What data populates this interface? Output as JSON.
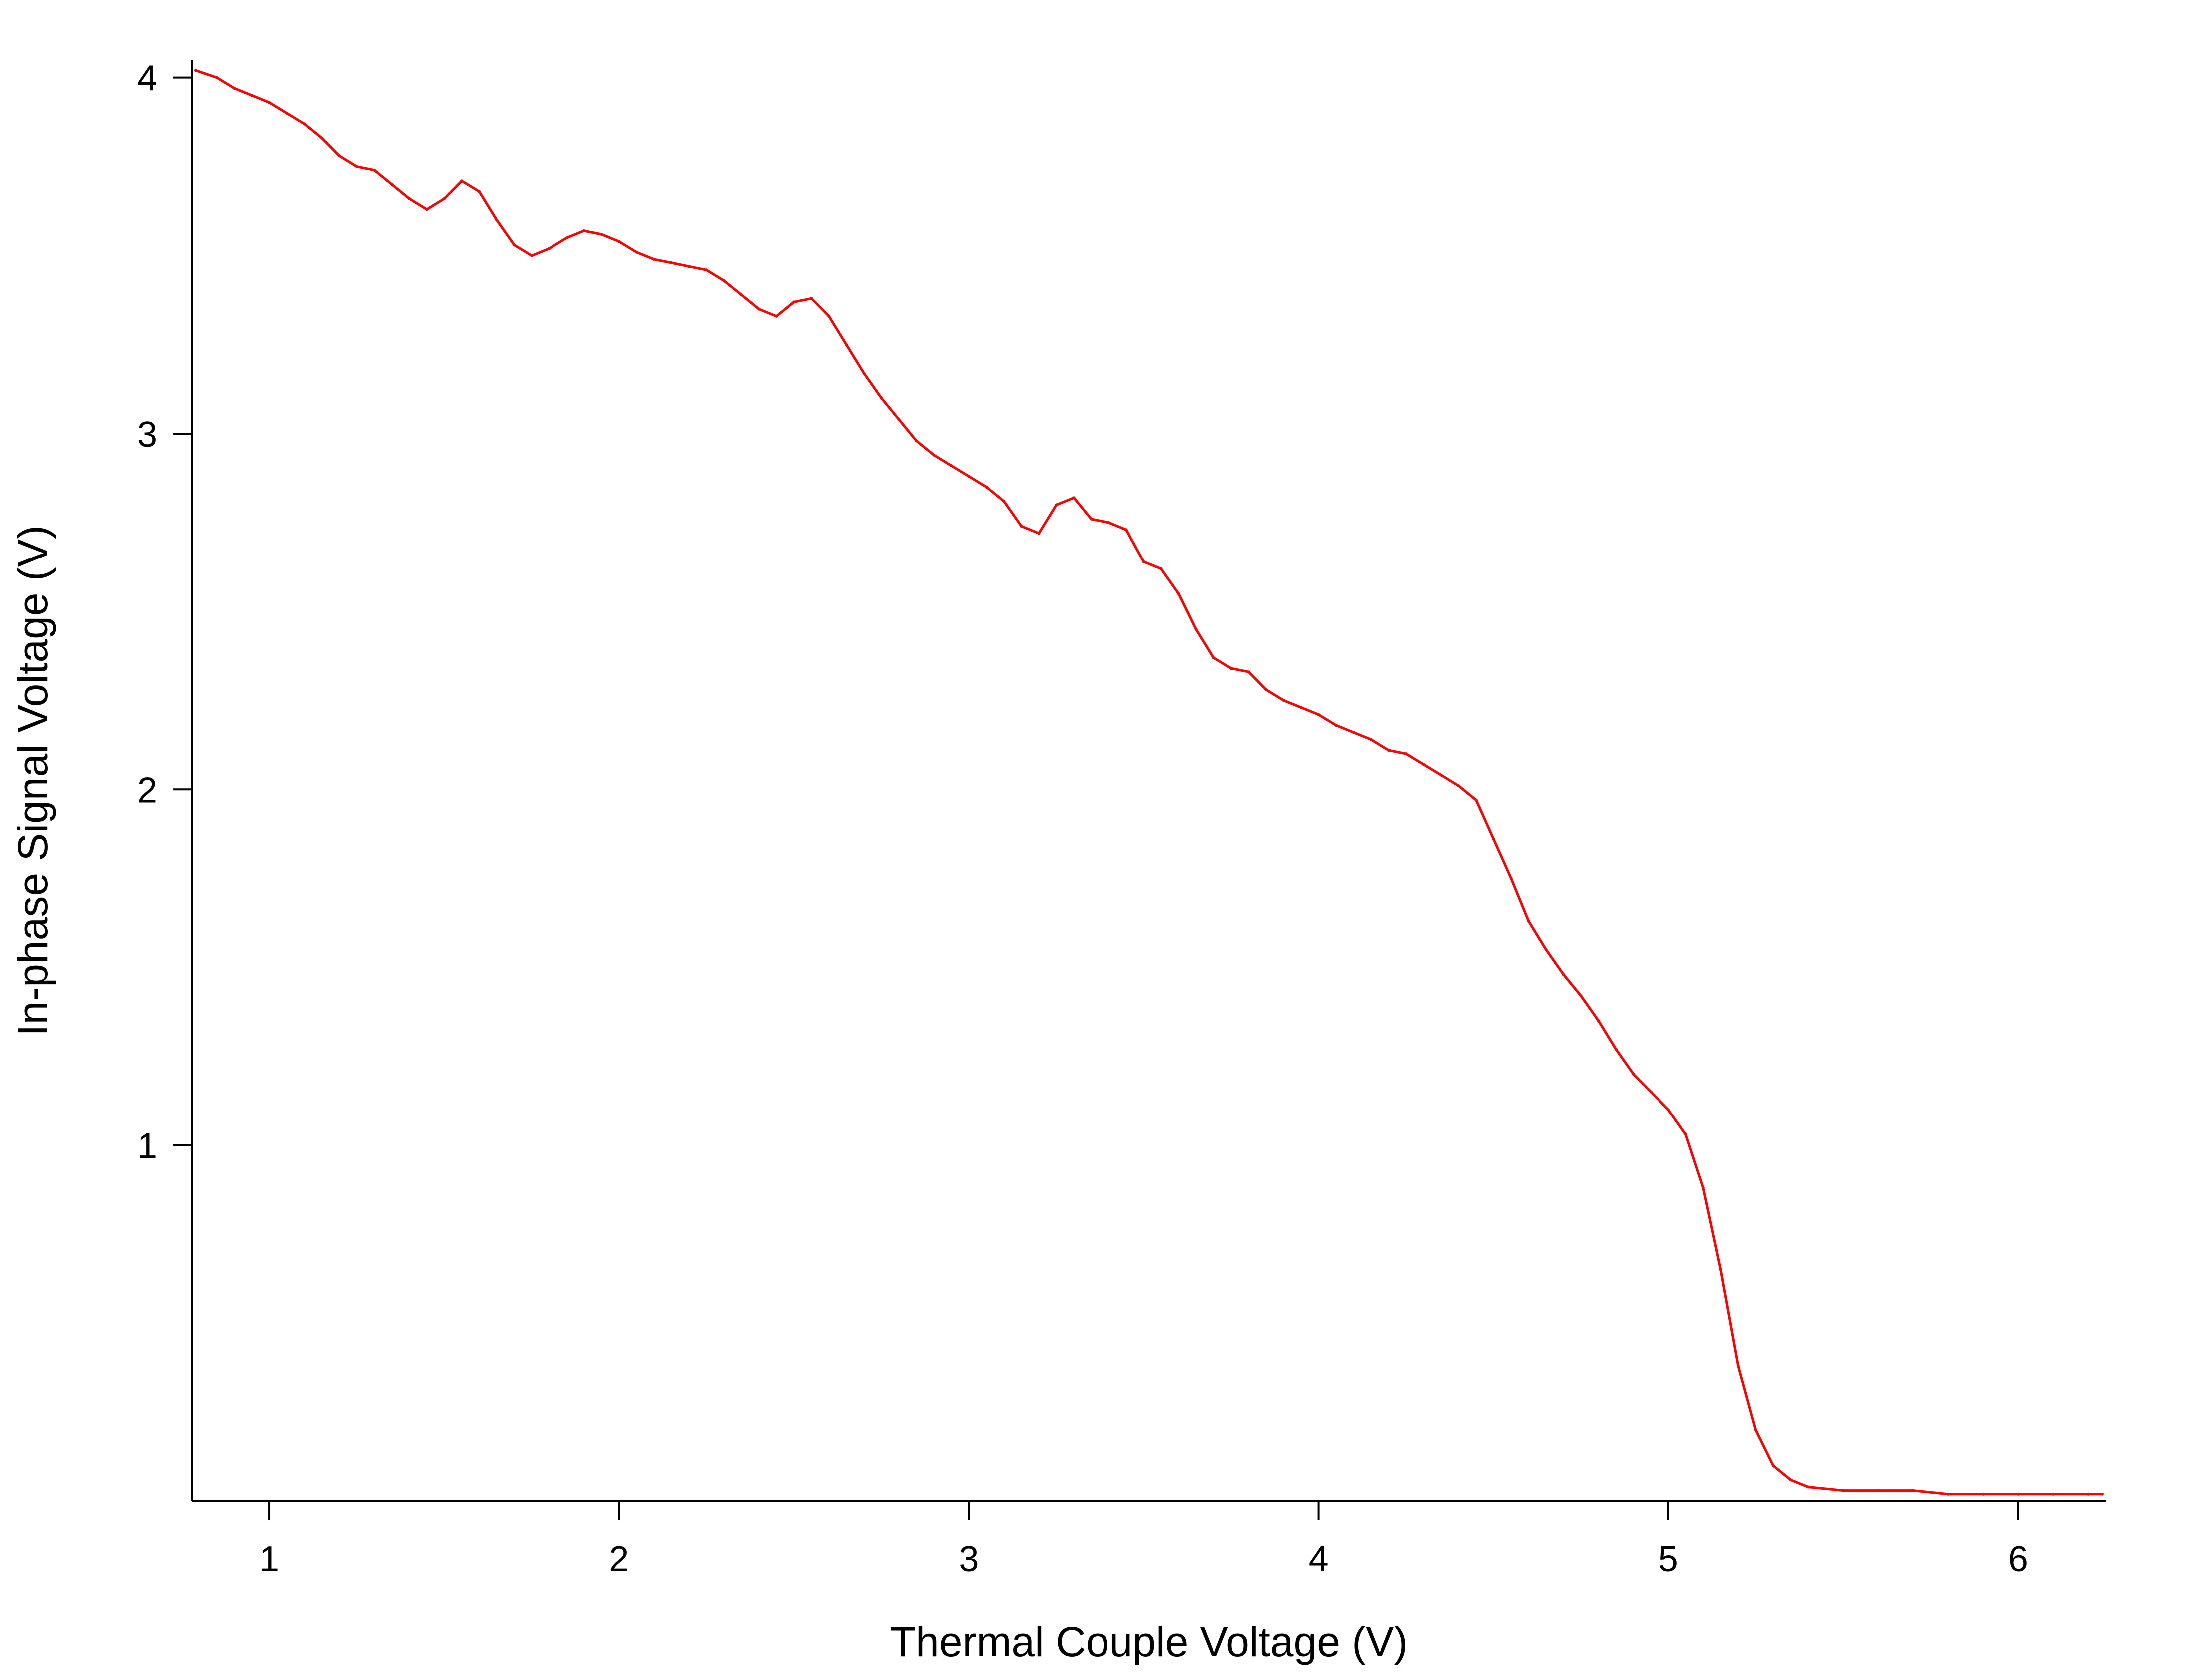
{
  "chart_data": {
    "type": "line",
    "title": "",
    "xlabel": "Thermal Couple Voltage (V)",
    "ylabel": "In-phase Signal Voltage (V)",
    "xlim": [
      0.78,
      6.25
    ],
    "ylim": [
      0.0,
      4.05
    ],
    "x_ticks": [
      1,
      2,
      3,
      4,
      5,
      6
    ],
    "y_ticks": [
      1,
      2,
      3,
      4
    ],
    "grid": false,
    "legend": "none",
    "series": [
      {
        "color": "#ff0000",
        "x": [
          0.79,
          0.85,
          0.9,
          0.95,
          1.0,
          1.05,
          1.1,
          1.15,
          1.2,
          1.25,
          1.3,
          1.35,
          1.4,
          1.45,
          1.5,
          1.55,
          1.6,
          1.65,
          1.7,
          1.75,
          1.8,
          1.85,
          1.9,
          1.95,
          2.0,
          2.05,
          2.1,
          2.15,
          2.2,
          2.25,
          2.3,
          2.35,
          2.4,
          2.45,
          2.5,
          2.55,
          2.6,
          2.65,
          2.7,
          2.75,
          2.8,
          2.85,
          2.9,
          2.95,
          3.0,
          3.05,
          3.1,
          3.15,
          3.2,
          3.25,
          3.3,
          3.35,
          3.4,
          3.45,
          3.5,
          3.55,
          3.6,
          3.65,
          3.7,
          3.75,
          3.8,
          3.85,
          3.9,
          3.95,
          4.0,
          4.05,
          4.1,
          4.15,
          4.2,
          4.25,
          4.3,
          4.35,
          4.4,
          4.45,
          4.5,
          4.55,
          4.6,
          4.65,
          4.7,
          4.75,
          4.8,
          4.85,
          4.9,
          4.95,
          5.0,
          5.05,
          5.1,
          5.15,
          5.2,
          5.25,
          5.3,
          5.35,
          5.4,
          5.5,
          5.6,
          5.7,
          5.8,
          5.9,
          6.0,
          6.1,
          6.2,
          6.24
        ],
        "y": [
          4.02,
          4.0,
          3.97,
          3.95,
          3.93,
          3.9,
          3.87,
          3.83,
          3.78,
          3.75,
          3.74,
          3.7,
          3.66,
          3.63,
          3.66,
          3.71,
          3.68,
          3.6,
          3.53,
          3.5,
          3.52,
          3.55,
          3.57,
          3.56,
          3.54,
          3.51,
          3.49,
          3.48,
          3.47,
          3.46,
          3.43,
          3.39,
          3.35,
          3.33,
          3.37,
          3.38,
          3.33,
          3.25,
          3.17,
          3.1,
          3.04,
          2.98,
          2.94,
          2.91,
          2.88,
          2.85,
          2.81,
          2.74,
          2.72,
          2.8,
          2.82,
          2.76,
          2.75,
          2.73,
          2.64,
          2.62,
          2.55,
          2.45,
          2.37,
          2.34,
          2.33,
          2.28,
          2.25,
          2.23,
          2.21,
          2.18,
          2.16,
          2.14,
          2.11,
          2.1,
          2.07,
          2.04,
          2.01,
          1.97,
          1.86,
          1.75,
          1.63,
          1.55,
          1.48,
          1.42,
          1.35,
          1.27,
          1.2,
          1.15,
          1.1,
          1.03,
          0.88,
          0.65,
          0.38,
          0.2,
          0.1,
          0.06,
          0.04,
          0.03,
          0.03,
          0.03,
          0.02,
          0.02,
          0.02,
          0.02,
          0.02,
          0.02
        ]
      }
    ]
  }
}
